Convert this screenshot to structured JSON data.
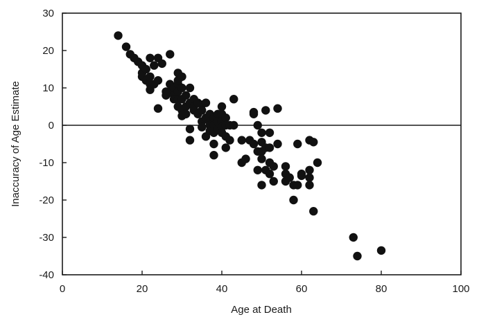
{
  "chart_data": {
    "type": "scatter",
    "title": "",
    "xlabel": "Age at Death",
    "ylabel": "Inaccuracy of Age Estimate",
    "xlim": [
      0,
      100
    ],
    "ylim": [
      -40,
      30
    ],
    "xticks": [
      0,
      20,
      40,
      60,
      80,
      100
    ],
    "yticks": [
      30,
      20,
      10,
      0,
      -10,
      -20,
      -30,
      -40
    ],
    "reference_line_y": 0,
    "grid": false,
    "marker_color": "#111111",
    "points": [
      [
        14,
        24
      ],
      [
        16,
        21
      ],
      [
        17,
        19
      ],
      [
        18,
        18
      ],
      [
        19,
        17
      ],
      [
        20,
        16
      ],
      [
        20,
        14
      ],
      [
        20,
        13
      ],
      [
        21,
        15
      ],
      [
        21,
        12
      ],
      [
        22,
        18
      ],
      [
        22,
        13
      ],
      [
        22,
        11
      ],
      [
        22,
        9.5
      ],
      [
        23,
        11
      ],
      [
        23,
        16
      ],
      [
        24,
        18
      ],
      [
        24,
        12
      ],
      [
        24,
        4.5
      ],
      [
        25,
        16.5
      ],
      [
        26,
        9
      ],
      [
        26,
        8
      ],
      [
        27,
        19
      ],
      [
        27,
        11
      ],
      [
        27,
        9
      ],
      [
        28,
        10
      ],
      [
        28,
        8
      ],
      [
        28,
        7
      ],
      [
        29,
        14
      ],
      [
        29,
        11
      ],
      [
        29,
        12
      ],
      [
        29,
        9
      ],
      [
        29,
        7
      ],
      [
        29,
        5
      ],
      [
        30,
        13
      ],
      [
        30,
        10
      ],
      [
        30,
        7
      ],
      [
        30,
        4
      ],
      [
        30,
        2.5
      ],
      [
        31,
        8
      ],
      [
        31,
        5
      ],
      [
        31,
        3
      ],
      [
        32,
        10
      ],
      [
        32,
        6
      ],
      [
        32,
        -1
      ],
      [
        32,
        -4
      ],
      [
        33,
        7
      ],
      [
        33,
        4
      ],
      [
        33,
        5
      ],
      [
        34,
        6
      ],
      [
        34,
        3
      ],
      [
        35,
        5.5
      ],
      [
        35,
        4
      ],
      [
        35,
        1
      ],
      [
        35,
        -0.5
      ],
      [
        36,
        6
      ],
      [
        36,
        2
      ],
      [
        36,
        -3
      ],
      [
        37,
        3
      ],
      [
        37,
        1
      ],
      [
        37,
        0
      ],
      [
        37,
        -1.5
      ],
      [
        38,
        2
      ],
      [
        38,
        0
      ],
      [
        38,
        -2
      ],
      [
        38,
        -5
      ],
      [
        38,
        -8
      ],
      [
        39,
        3
      ],
      [
        39,
        1
      ],
      [
        39,
        -1
      ],
      [
        40,
        5
      ],
      [
        40,
        3
      ],
      [
        40,
        1
      ],
      [
        40,
        -0.5
      ],
      [
        40,
        -2
      ],
      [
        41,
        2
      ],
      [
        41,
        0
      ],
      [
        41,
        -3
      ],
      [
        41,
        -6
      ],
      [
        42,
        0
      ],
      [
        42,
        -4
      ],
      [
        43,
        7
      ],
      [
        43,
        0
      ],
      [
        45,
        -4
      ],
      [
        45,
        -10
      ],
      [
        46,
        -9
      ],
      [
        47,
        -4
      ],
      [
        48,
        3.5
      ],
      [
        48,
        3
      ],
      [
        48,
        -5
      ],
      [
        49,
        -7
      ],
      [
        49,
        -12
      ],
      [
        49,
        0
      ],
      [
        50,
        -2
      ],
      [
        50,
        -4.5
      ],
      [
        50,
        -7
      ],
      [
        50,
        -9
      ],
      [
        50,
        -16
      ],
      [
        51,
        4
      ],
      [
        51,
        -6
      ],
      [
        51,
        -12
      ],
      [
        52,
        -2
      ],
      [
        52,
        -6
      ],
      [
        52,
        -10
      ],
      [
        52,
        -13
      ],
      [
        53,
        -15
      ],
      [
        53,
        -11
      ],
      [
        54,
        4.5
      ],
      [
        54,
        -5
      ],
      [
        56,
        -11
      ],
      [
        56,
        -13
      ],
      [
        56,
        -15
      ],
      [
        57,
        -14
      ],
      [
        58,
        -20
      ],
      [
        58,
        -16
      ],
      [
        59,
        -5
      ],
      [
        59,
        -16
      ],
      [
        60,
        -13
      ],
      [
        60,
        -13.5
      ],
      [
        62,
        -4
      ],
      [
        62,
        -16
      ],
      [
        62,
        -14
      ],
      [
        62,
        -12
      ],
      [
        63,
        -23
      ],
      [
        63,
        -4.5
      ],
      [
        64,
        -10
      ],
      [
        73,
        -30
      ],
      [
        74,
        -35
      ],
      [
        80,
        -33.5
      ]
    ]
  }
}
